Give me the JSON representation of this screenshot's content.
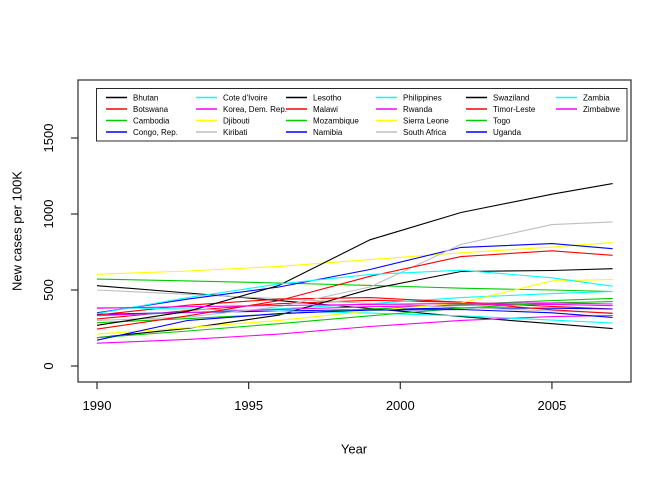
{
  "figure": {
    "background": "#ffffff",
    "box_color": "#2b2b2b",
    "text_color": "#000000",
    "tick_label_color": "#000000"
  },
  "chart_data": {
    "type": "line",
    "title": "",
    "xlabel": "Year",
    "ylabel": "New cases per 100K",
    "x_ticks": [
      1990,
      1995,
      2000,
      2005
    ],
    "y_ticks": [
      0,
      500,
      1000,
      1500
    ],
    "x_range": [
      1990,
      2007
    ],
    "y_axis_range": [
      0,
      1500
    ],
    "grid": false,
    "legend_position": "top-inside",
    "legend_columns": 6,
    "legend_rows_per_column": 4,
    "x": [
      1990,
      1993,
      1996,
      1999,
      2002,
      2005,
      2007
    ],
    "series": [
      {
        "name": "Bhutan",
        "color": "#000000",
        "values": [
          528,
          480,
          430,
          378,
          325,
          278,
          246
        ]
      },
      {
        "name": "Botswana",
        "color": "#FF0000",
        "values": [
          310,
          365,
          410,
          432,
          420,
          392,
          375
        ]
      },
      {
        "name": "Cambodia",
        "color": "#00CD00",
        "values": [
          572,
          560,
          546,
          530,
          512,
          500,
          490
        ]
      },
      {
        "name": "Congo, Rep.",
        "color": "#0000FF",
        "values": [
          340,
          352,
          362,
          372,
          382,
          380,
          375
        ]
      },
      {
        "name": "Cote d'Ivoire",
        "color": "#00FFFF",
        "values": [
          330,
          352,
          376,
          410,
          450,
          476,
          490
        ]
      },
      {
        "name": "Korea, Dem. Rep.",
        "color": "#FF00FF",
        "values": [
          150,
          175,
          210,
          260,
          300,
          325,
          332
        ]
      },
      {
        "name": "Djibouti",
        "color": "#FFFF00",
        "values": [
          603,
          625,
          655,
          700,
          745,
          782,
          812
        ]
      },
      {
        "name": "Kiribati",
        "color": "#BEBEBE",
        "values": [
          500,
          472,
          443,
          412,
          386,
          362,
          350
        ]
      },
      {
        "name": "Lesotho",
        "color": "#000000",
        "values": [
          186,
          248,
          335,
          505,
          622,
          628,
          640
        ]
      },
      {
        "name": "Malawi",
        "color": "#FF0000",
        "values": [
          335,
          400,
          440,
          450,
          420,
          370,
          346
        ]
      },
      {
        "name": "Mozambique",
        "color": "#00CD00",
        "values": [
          285,
          312,
          342,
          375,
          405,
          430,
          445
        ]
      },
      {
        "name": "Namibia",
        "color": "#0000FF",
        "values": [
          350,
          440,
          520,
          635,
          780,
          805,
          772
        ]
      },
      {
        "name": "Philippines",
        "color": "#00FFFF",
        "values": [
          385,
          375,
          362,
          348,
          330,
          302,
          283
        ]
      },
      {
        "name": "Rwanda",
        "color": "#FF00FF",
        "values": [
          332,
          352,
          372,
          390,
          400,
          406,
          397
        ]
      },
      {
        "name": "Sierra Leone",
        "color": "#FFFF00",
        "values": [
          210,
          252,
          300,
          362,
          415,
          560,
          570
        ]
      },
      {
        "name": "South Africa",
        "color": "#BEBEBE",
        "values": [
          300,
          322,
          390,
          520,
          800,
          930,
          948
        ]
      },
      {
        "name": "Swaziland",
        "color": "#000000",
        "values": [
          268,
          360,
          530,
          830,
          1010,
          1130,
          1200
        ]
      },
      {
        "name": "Timor-Leste",
        "color": "#FF0000",
        "values": [
          243,
          330,
          430,
          590,
          720,
          758,
          728
        ]
      },
      {
        "name": "Togo",
        "color": "#00CD00",
        "values": [
          186,
          230,
          278,
          330,
          380,
          415,
          424
        ]
      },
      {
        "name": "Uganda",
        "color": "#0000FF",
        "values": [
          170,
          300,
          345,
          368,
          372,
          350,
          320
        ]
      },
      {
        "name": "Zambia",
        "color": "#00FFFF",
        "values": [
          345,
          450,
          540,
          602,
          630,
          580,
          525
        ]
      },
      {
        "name": "Zimbabwe",
        "color": "#FF00FF",
        "values": [
          380,
          390,
          398,
          405,
          412,
          415,
          408
        ]
      }
    ]
  }
}
